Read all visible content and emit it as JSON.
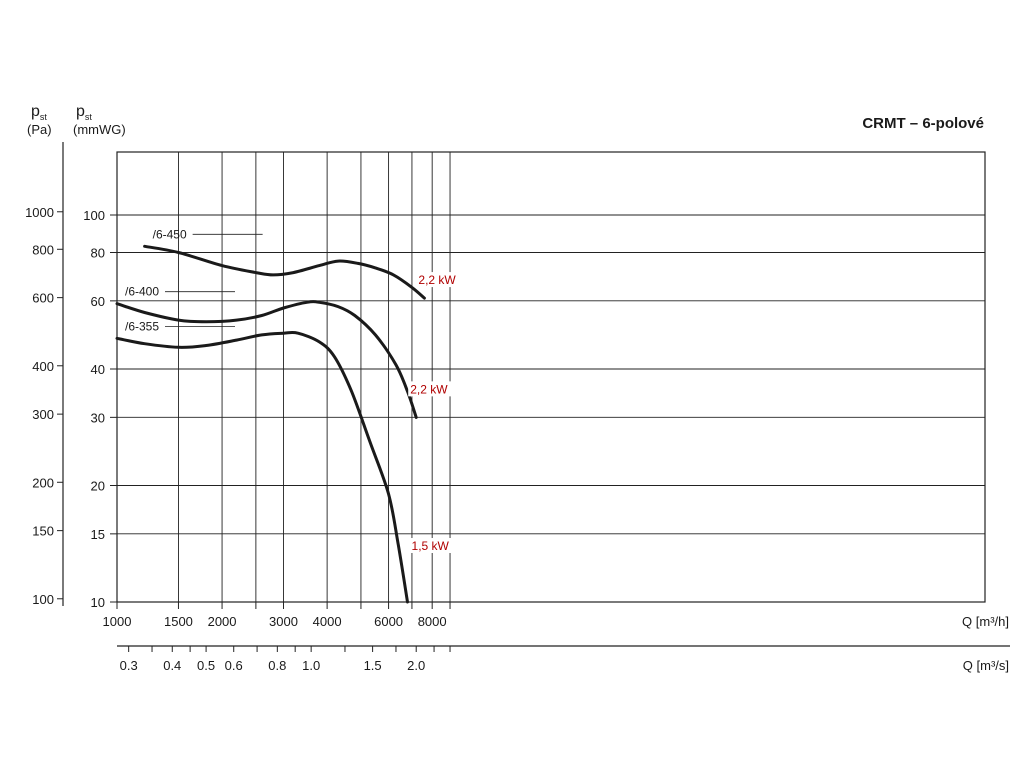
{
  "chart_data": {
    "type": "line",
    "title": "CRMT – 6-polové",
    "y_left_label": {
      "main": "p",
      "sub": "st",
      "unit": "(Pa)"
    },
    "y_right_label": {
      "main": "p",
      "sub": "st",
      "unit": "(mmWG)"
    },
    "x_label": "Q [m³/h]",
    "x2_label": "Q [m³/s]",
    "x_scale": "log",
    "y_scale": "log",
    "xlim": [
      1000,
      9500
    ],
    "ylim_mmwg": [
      10,
      115
    ],
    "x_ticks": [
      1000,
      1500,
      2000,
      3000,
      4000,
      6000,
      8000
    ],
    "x_ticks_minor": [
      2500,
      5000,
      7000,
      9000
    ],
    "x2_ticks": [
      "0.3",
      "0.4",
      "0.5",
      "0.6",
      "0.8",
      "1.0",
      "1.5",
      "2.0"
    ],
    "y_mmwg_ticks": [
      10,
      15,
      20,
      30,
      40,
      60,
      80,
      100
    ],
    "y_pa_ticks": [
      100,
      150,
      200,
      300,
      400,
      600,
      800,
      1000
    ],
    "grid": true,
    "series": [
      {
        "name": "/6-450",
        "power": "2,2 kW",
        "x": [
          1200,
          1500,
          2000,
          2500,
          2800,
          3200,
          3800,
          4300,
          4900,
          5500,
          6200,
          7000,
          7600
        ],
        "y": [
          83,
          80,
          74,
          71,
          70,
          71,
          74,
          76,
          75,
          73,
          70,
          65,
          61
        ]
      },
      {
        "name": "/6-400",
        "power": "2,2 kW",
        "x": [
          1000,
          1200,
          1500,
          1800,
          2200,
          2600,
          3000,
          3500,
          3800,
          4300,
          4800,
          5500,
          6300,
          6800,
          7200
        ],
        "y": [
          59,
          56,
          53.5,
          53,
          53.5,
          55,
          57.5,
          59.5,
          59.5,
          58,
          55,
          49,
          41,
          35,
          30
        ]
      },
      {
        "name": "/6-355",
        "power": "1,5 kW",
        "x": [
          1000,
          1200,
          1500,
          1800,
          2200,
          2600,
          3000,
          3300,
          3800,
          4200,
          4700,
          5300,
          6000,
          6400,
          6800
        ],
        "y": [
          48,
          46.5,
          45.5,
          46,
          47.5,
          49,
          49.5,
          49.5,
          47,
          43,
          35,
          26,
          19,
          14,
          10
        ]
      }
    ]
  }
}
